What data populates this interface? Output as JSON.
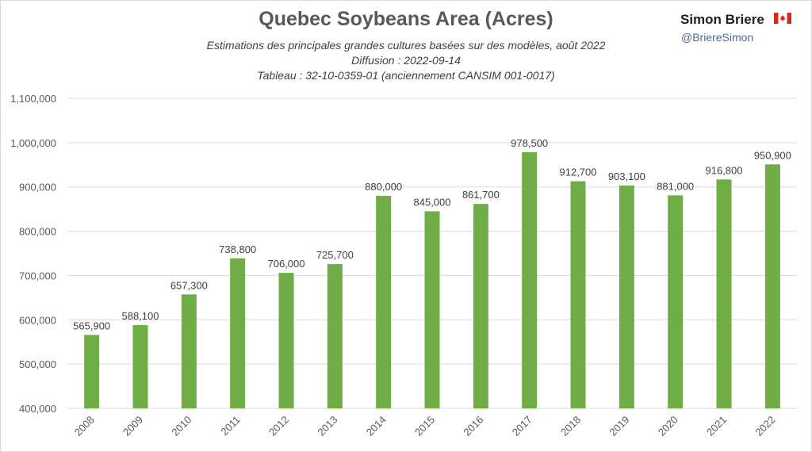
{
  "header": {
    "title": "Quebec Soybeans Area (Acres)",
    "subtitle1": "Estimations des principales grandes cultures basées sur des modèles, août 2022",
    "subtitle2": "Diffusion : 2022-09-14",
    "subtitle3": "Tableau : 32-10-0359-01 (anciennement CANSIM 001-0017)"
  },
  "branding": {
    "name": "Simon Briere",
    "handle": "@BriereSimon",
    "flag_icon": "canada-flag-icon"
  },
  "colors": {
    "bar": "#70ad47",
    "grid": "#d9d9d9",
    "text": "#595959",
    "flag_red": "#d52b1e"
  },
  "chart_data": {
    "type": "bar",
    "title": "Quebec Soybeans Area (Acres)",
    "xlabel": "",
    "ylabel": "",
    "categories": [
      "2008",
      "2009",
      "2010",
      "2011",
      "2012",
      "2013",
      "2014",
      "2015",
      "2016",
      "2017",
      "2018",
      "2019",
      "2020",
      "2021",
      "2022"
    ],
    "values": [
      565900,
      588100,
      657300,
      738800,
      706000,
      725700,
      880000,
      845000,
      861700,
      978500,
      912700,
      903100,
      881000,
      916800,
      950900
    ],
    "value_labels": [
      "565,900",
      "588,100",
      "657,300",
      "738,800",
      "706,000",
      "725,700",
      "880,000",
      "845,000",
      "861,700",
      "978,500",
      "912,700",
      "903,100",
      "881,000",
      "916,800",
      "950,900"
    ],
    "ylim": [
      400000,
      1100000
    ],
    "yticks": [
      400000,
      500000,
      600000,
      700000,
      800000,
      900000,
      1000000,
      1100000
    ],
    "ytick_labels": [
      "400,000",
      "500,000",
      "600,000",
      "700,000",
      "800,000",
      "900,000",
      "1,000,000",
      "1,100,000"
    ],
    "grid": true,
    "legend": "none"
  }
}
